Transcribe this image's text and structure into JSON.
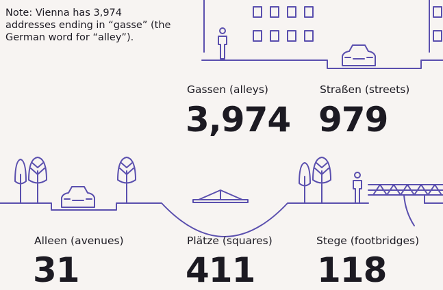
{
  "note": "Note: Vienna has 3,974 addresses ending in “gasse” (the German word for “alley”).",
  "items": [
    {
      "label": "Gassen (alleys)",
      "value": "3,974"
    },
    {
      "label": "Straßen (streets)",
      "value": "979"
    },
    {
      "label": "Alleen (avenues)",
      "value": "31"
    },
    {
      "label": "Plätze (squares)",
      "value": "411"
    },
    {
      "label": "Stege (footbridges)",
      "value": "118"
    }
  ]
}
